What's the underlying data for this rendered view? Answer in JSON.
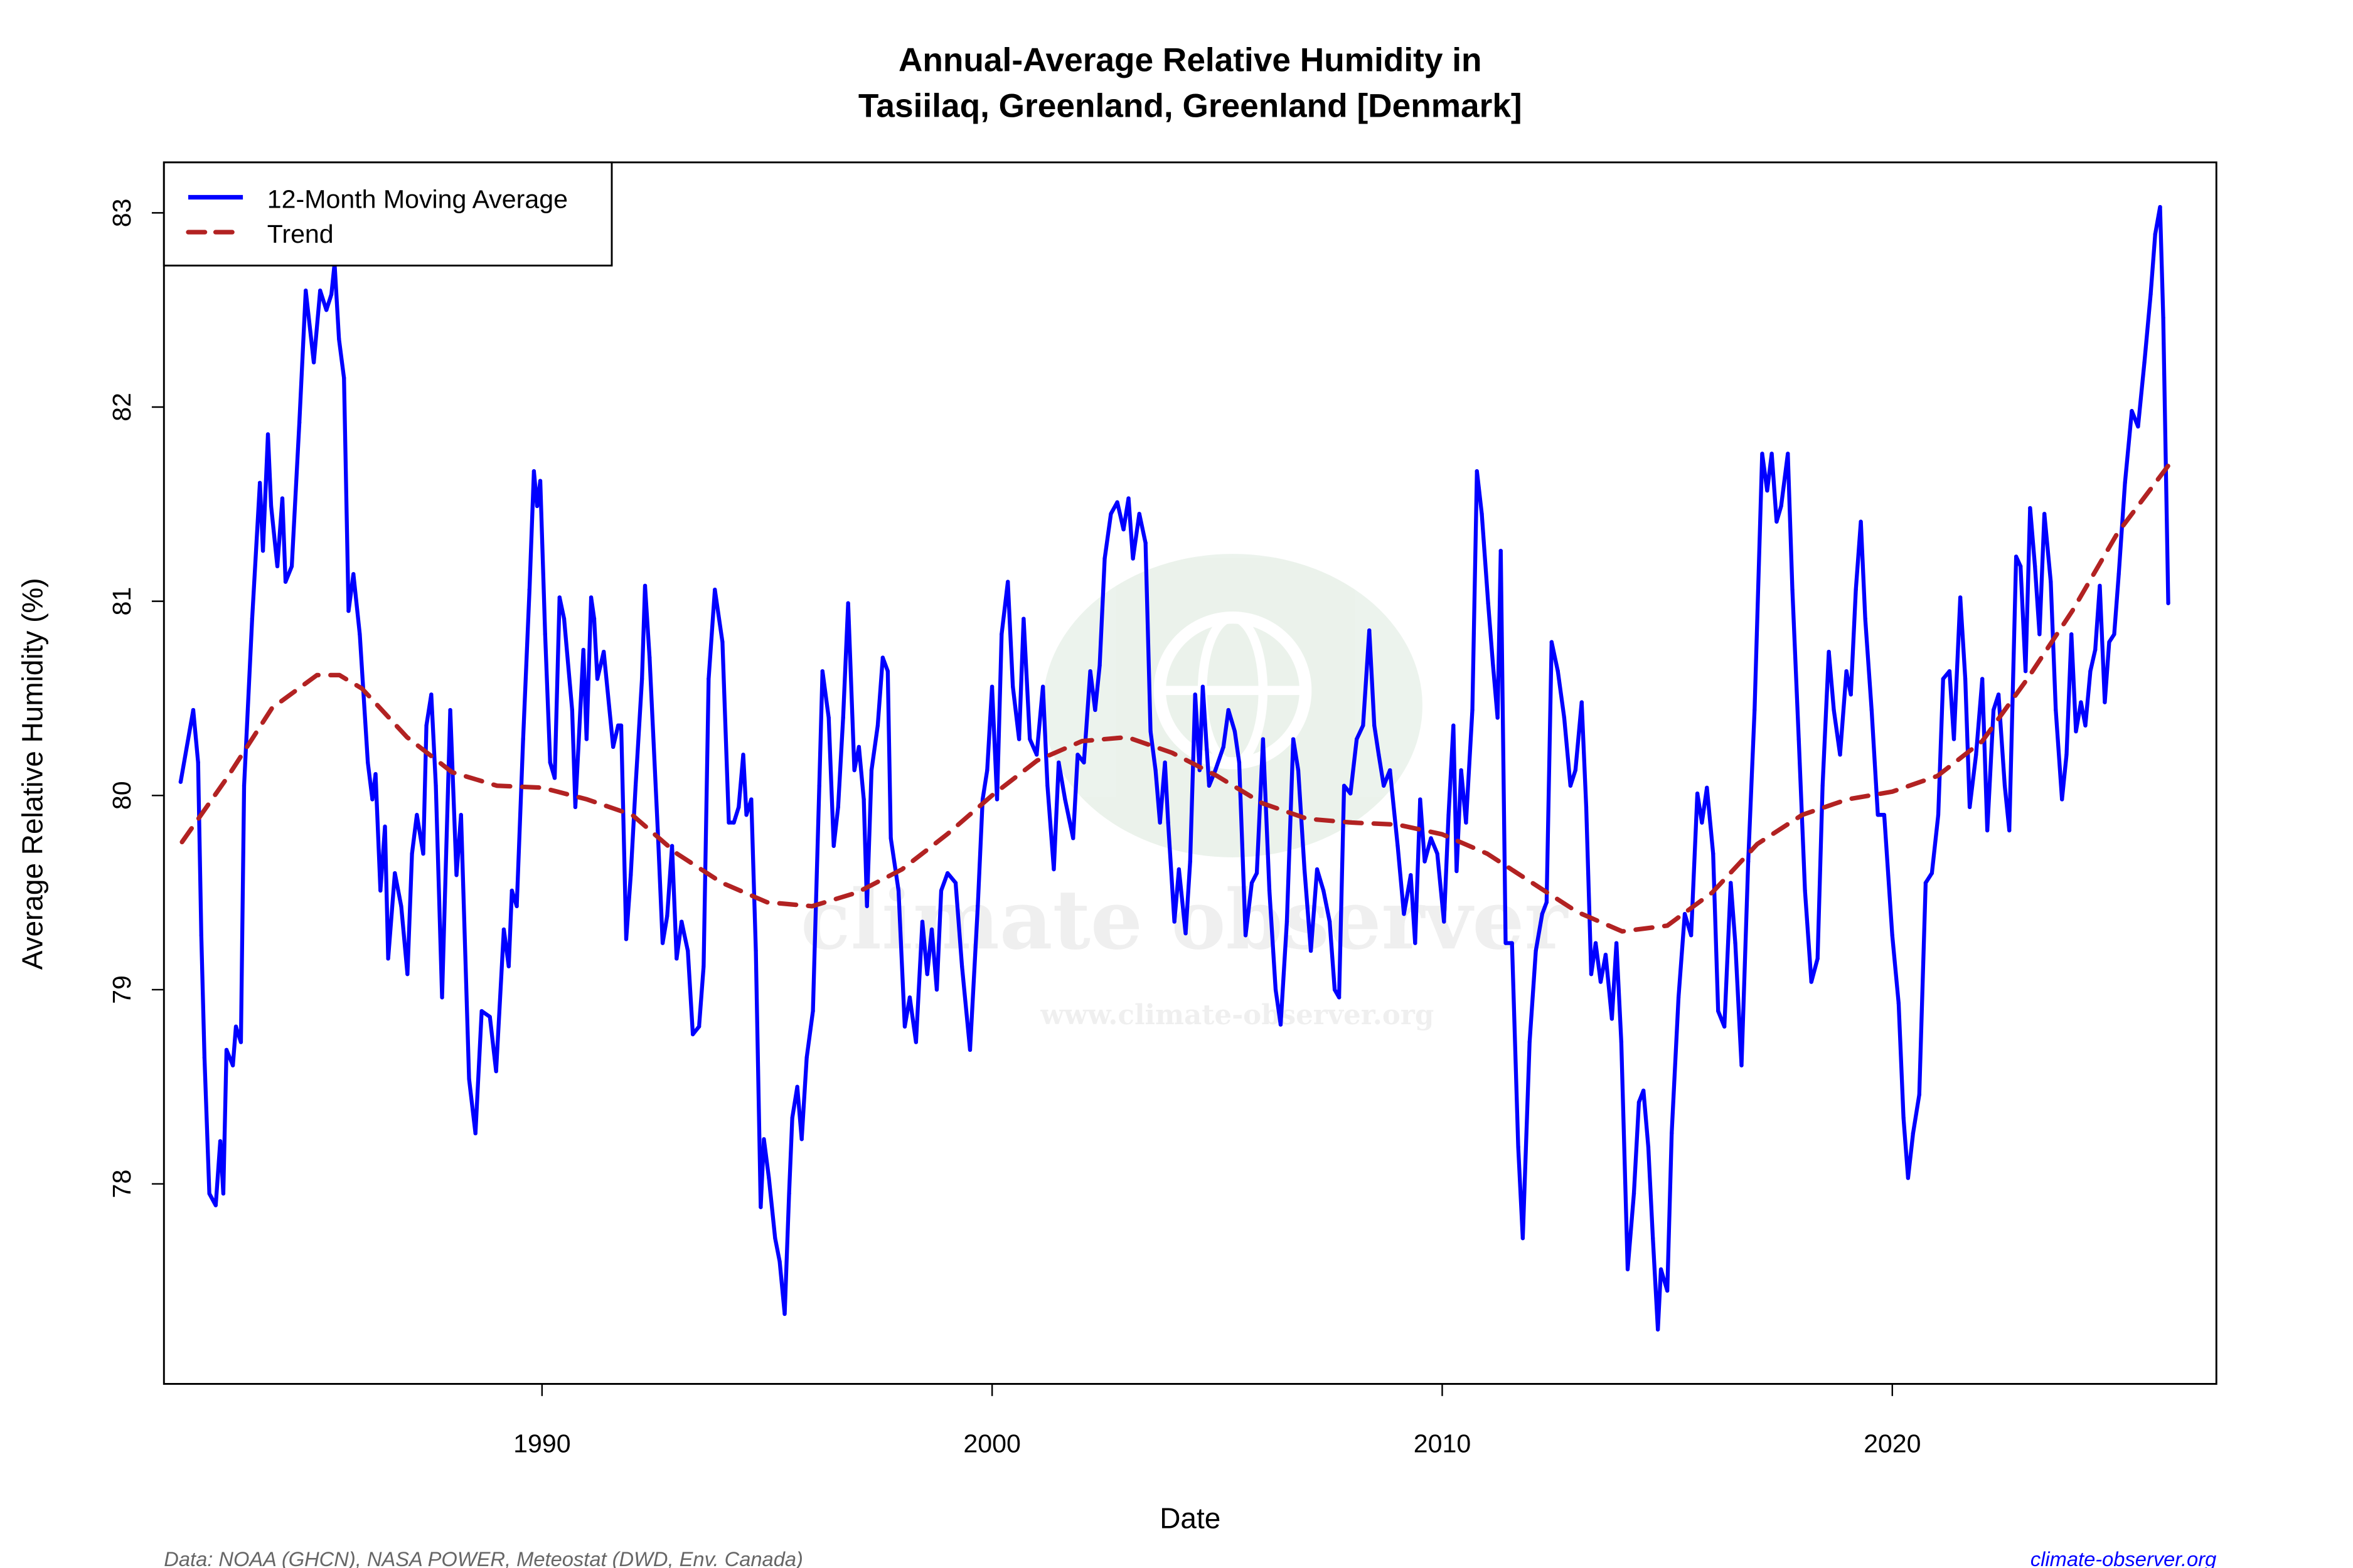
{
  "chart_data": {
    "type": "line",
    "title": "Annual-Average Relative Humidity in",
    "subtitle": "Tasiilaq, Greenland, Greenland [Denmark]",
    "xlabel": "Date",
    "ylabel": "Average Relative Humidity (%)",
    "xlim": [
      1981.6,
      2027.2
    ],
    "ylim": [
      76.97,
      83.26
    ],
    "xticks": [
      1990,
      2000,
      2010,
      2020
    ],
    "yticks": [
      78,
      79,
      80,
      81,
      82,
      83
    ],
    "grid": false,
    "legend": {
      "placement": "top-left",
      "entries": [
        "12-Month Moving Average",
        "Trend"
      ]
    },
    "colors": {
      "moving_average": "#0000ff",
      "trend": "#b22222"
    },
    "series": [
      {
        "name": "12-Month Moving Average",
        "style": "solid",
        "x": [
          1981.97,
          1982.25,
          1982.36,
          1982.43,
          1982.5,
          1982.61,
          1982.75,
          1982.85,
          1982.92,
          1982.99,
          1983.13,
          1983.2,
          1983.31,
          1983.38,
          1983.56,
          1983.73,
          1983.8,
          1983.91,
          1983.98,
          1984.12,
          1984.23,
          1984.3,
          1984.44,
          1984.61,
          1984.75,
          1984.93,
          1985.07,
          1985.21,
          1985.32,
          1985.39,
          1985.49,
          1985.6,
          1985.7,
          1985.81,
          1985.95,
          1986.13,
          1986.23,
          1986.3,
          1986.41,
          1986.51,
          1986.58,
          1986.73,
          1986.87,
          1987.01,
          1987.11,
          1987.22,
          1987.36,
          1987.43,
          1987.54,
          1987.64,
          1987.78,
          1987.96,
          1988.1,
          1988.2,
          1988.38,
          1988.52,
          1988.66,
          1988.84,
          1988.98,
          1989.15,
          1989.26,
          1989.33,
          1989.44,
          1989.58,
          1989.72,
          1989.82,
          1989.89,
          1989.96,
          1990.07,
          1990.18,
          1990.28,
          1990.39,
          1990.49,
          1990.67,
          1990.74,
          1990.92,
          1990.99,
          1991.09,
          1991.16,
          1991.23,
          1991.37,
          1991.58,
          1991.69,
          1991.76,
          1991.87,
          1991.97,
          1992.08,
          1992.22,
          1992.29,
          1992.39,
          1992.57,
          1992.68,
          1992.78,
          1992.89,
          1992.99,
          1993.1,
          1993.24,
          1993.35,
          1993.49,
          1993.59,
          1993.7,
          1993.84,
          1994.01,
          1994.15,
          1994.26,
          1994.37,
          1994.47,
          1994.54,
          1994.65,
          1994.75,
          1994.86,
          1994.93,
          1995.04,
          1995.18,
          1995.28,
          1995.39,
          1995.49,
          1995.56,
          1995.67,
          1995.77,
          1995.88,
          1996.02,
          1996.16,
          1996.23,
          1996.37,
          1996.48,
          1996.58,
          1996.69,
          1996.8,
          1996.94,
          1997.04,
          1997.15,
          1997.22,
          1997.32,
          1997.46,
          1997.57,
          1997.68,
          1997.75,
          1997.92,
          1998.06,
          1998.17,
          1998.31,
          1998.45,
          1998.56,
          1998.66,
          1998.77,
          1998.87,
          1999.01,
          1999.19,
          1999.33,
          1999.51,
          1999.68,
          1999.79,
          1999.89,
          2000.0,
          2000.11,
          2000.21,
          2000.35,
          2000.46,
          2000.6,
          2000.7,
          2000.84,
          2000.99,
          2001.13,
          2001.23,
          2001.37,
          2001.48,
          2001.62,
          2001.8,
          2001.9,
          2002.04,
          2002.18,
          2002.29,
          2002.39,
          2002.5,
          2002.64,
          2002.78,
          2002.92,
          2003.03,
          2003.13,
          2003.27,
          2003.41,
          2003.52,
          2003.63,
          2003.73,
          2003.84,
          2003.91,
          2004.05,
          2004.15,
          2004.3,
          2004.4,
          2004.51,
          2004.61,
          2004.68,
          2004.82,
          2004.96,
          2005.14,
          2005.25,
          2005.39,
          2005.49,
          2005.63,
          2005.77,
          2005.88,
          2006.02,
          2006.16,
          2006.3,
          2006.41,
          2006.55,
          2006.69,
          2006.8,
          2006.94,
          2007.08,
          2007.22,
          2007.36,
          2007.5,
          2007.61,
          2007.71,
          2007.82,
          2007.96,
          2008.1,
          2008.24,
          2008.38,
          2008.49,
          2008.59,
          2008.7,
          2008.84,
          2009.01,
          2009.15,
          2009.3,
          2009.4,
          2009.51,
          2009.61,
          2009.75,
          2009.89,
          2010.04,
          2010.14,
          2010.25,
          2010.32,
          2010.42,
          2010.53,
          2010.67,
          2010.77,
          2010.88,
          2011.02,
          2011.13,
          2011.23,
          2011.3,
          2011.41,
          2011.55,
          2011.69,
          2011.79,
          2011.94,
          2012.08,
          2012.22,
          2012.32,
          2012.43,
          2012.57,
          2012.71,
          2012.85,
          2012.96,
          2013.1,
          2013.2,
          2013.31,
          2013.41,
          2013.52,
          2013.63,
          2013.77,
          2013.87,
          2013.98,
          2014.12,
          2014.26,
          2014.37,
          2014.47,
          2014.58,
          2014.68,
          2014.79,
          2014.86,
          2015.0,
          2015.1,
          2015.25,
          2015.39,
          2015.53,
          2015.67,
          2015.77,
          2015.88,
          2016.02,
          2016.13,
          2016.27,
          2016.41,
          2016.51,
          2016.65,
          2016.8,
          2016.94,
          2017.11,
          2017.22,
          2017.32,
          2017.43,
          2017.53,
          2017.68,
          2017.78,
          2017.92,
          2018.06,
          2018.2,
          2018.34,
          2018.45,
          2018.59,
          2018.7,
          2018.84,
          2018.98,
          2019.08,
          2019.19,
          2019.3,
          2019.4,
          2019.54,
          2019.68,
          2019.82,
          2020.0,
          2020.14,
          2020.25,
          2020.35,
          2020.46,
          2020.6,
          2020.74,
          2020.88,
          2021.02,
          2021.13,
          2021.27,
          2021.37,
          2021.51,
          2021.62,
          2021.72,
          2021.86,
          2022.0,
          2022.11,
          2022.25,
          2022.36,
          2022.5,
          2022.6,
          2022.75,
          2022.85,
          2022.96,
          2023.06,
          2023.17,
          2023.27,
          2023.38,
          2023.52,
          2023.63,
          2023.77,
          2023.87,
          2023.98,
          2024.08,
          2024.19,
          2024.29,
          2024.4,
          2024.51,
          2024.61,
          2024.72,
          2024.82,
          2024.93,
          2025.03,
          2025.17,
          2025.32,
          2025.46,
          2025.6,
          2025.74,
          2025.84,
          2025.95,
          2026.02,
          2026.13
        ],
        "y": [
          80.07,
          80.44,
          80.17,
          79.28,
          78.65,
          77.95,
          77.89,
          78.22,
          77.95,
          78.69,
          78.61,
          78.81,
          78.73,
          80.05,
          80.91,
          81.61,
          81.26,
          81.86,
          81.49,
          81.18,
          81.53,
          81.1,
          81.18,
          81.92,
          82.6,
          82.23,
          82.6,
          82.5,
          82.58,
          82.74,
          82.35,
          82.15,
          80.95,
          81.14,
          80.83,
          80.17,
          79.98,
          80.11,
          79.51,
          79.84,
          79.16,
          79.6,
          79.43,
          79.08,
          79.7,
          79.9,
          79.7,
          80.36,
          80.52,
          80.05,
          78.96,
          80.44,
          79.59,
          79.9,
          78.54,
          78.26,
          78.89,
          78.86,
          78.58,
          79.31,
          79.12,
          79.51,
          79.43,
          80.29,
          81.06,
          81.67,
          81.49,
          81.62,
          80.83,
          80.17,
          80.09,
          81.02,
          80.91,
          80.44,
          79.94,
          80.75,
          80.29,
          81.02,
          80.91,
          80.6,
          80.74,
          80.25,
          80.36,
          80.36,
          79.26,
          79.59,
          80.05,
          80.6,
          81.08,
          80.71,
          79.82,
          79.24,
          79.38,
          79.74,
          79.16,
          79.35,
          79.2,
          78.77,
          78.81,
          79.12,
          80.6,
          81.06,
          80.79,
          79.86,
          79.86,
          79.94,
          80.21,
          79.9,
          79.98,
          79.2,
          77.88,
          78.23,
          78.03,
          77.72,
          77.6,
          77.33,
          77.95,
          78.34,
          78.5,
          78.23,
          78.65,
          78.89,
          80.05,
          80.64,
          80.4,
          79.74,
          79.94,
          80.4,
          80.99,
          80.13,
          80.25,
          79.98,
          79.43,
          80.13,
          80.36,
          80.71,
          80.64,
          79.78,
          79.51,
          78.81,
          78.96,
          78.73,
          79.35,
          79.08,
          79.31,
          79.0,
          79.51,
          79.6,
          79.55,
          79.12,
          78.69,
          79.43,
          79.98,
          80.13,
          80.56,
          79.98,
          80.83,
          81.1,
          80.56,
          80.29,
          80.91,
          80.29,
          80.21,
          80.56,
          80.05,
          79.62,
          80.17,
          79.98,
          79.78,
          80.21,
          80.17,
          80.64,
          80.44,
          80.67,
          81.22,
          81.45,
          81.51,
          81.37,
          81.53,
          81.22,
          81.45,
          81.3,
          80.33,
          80.13,
          79.86,
          80.17,
          79.86,
          79.35,
          79.62,
          79.29,
          79.66,
          80.52,
          80.13,
          80.56,
          80.05,
          80.13,
          80.25,
          80.44,
          80.33,
          80.17,
          79.28,
          79.55,
          79.6,
          80.29,
          79.51,
          79.0,
          78.82,
          79.35,
          80.29,
          80.13,
          79.62,
          79.2,
          79.62,
          79.51,
          79.35,
          79.0,
          78.96,
          80.05,
          80.01,
          80.29,
          80.36,
          80.85,
          80.36,
          80.21,
          80.05,
          80.13,
          79.74,
          79.39,
          79.59,
          79.24,
          79.98,
          79.66,
          79.78,
          79.7,
          79.35,
          79.9,
          80.36,
          79.61,
          80.13,
          79.86,
          80.44,
          81.67,
          81.45,
          80.99,
          80.67,
          80.4,
          81.26,
          79.24,
          79.24,
          78.19,
          77.72,
          78.73,
          79.2,
          79.39,
          79.45,
          80.79,
          80.64,
          80.4,
          80.05,
          80.13,
          80.48,
          79.94,
          79.08,
          79.24,
          79.04,
          79.18,
          78.85,
          79.24,
          78.73,
          77.56,
          77.95,
          78.42,
          78.48,
          78.19,
          77.72,
          77.25,
          77.56,
          77.45,
          78.26,
          78.96,
          79.39,
          79.28,
          80.01,
          79.86,
          80.04,
          79.7,
          78.89,
          78.81,
          79.55,
          79.24,
          78.61,
          79.66,
          80.44,
          81.76,
          81.57,
          81.76,
          81.41,
          81.49,
          81.76,
          81.06,
          80.29,
          79.51,
          79.04,
          79.16,
          80.05,
          80.74,
          80.44,
          80.21,
          80.64,
          80.52,
          81.06,
          81.41,
          80.91,
          80.44,
          79.9,
          79.9,
          79.28,
          78.93,
          78.34,
          78.03,
          78.26,
          78.46,
          79.55,
          79.6,
          79.9,
          80.6,
          80.64,
          80.29,
          81.02,
          80.6,
          79.94,
          80.21,
          80.6,
          79.82,
          80.44,
          80.52,
          80.05,
          79.82,
          81.23,
          81.18,
          80.64,
          81.48,
          81.18,
          80.83,
          81.45,
          81.1,
          80.44,
          79.98,
          80.21,
          80.83,
          80.33,
          80.48,
          80.36,
          80.64,
          80.75,
          81.08,
          80.48,
          80.79,
          80.83,
          81.14,
          81.61,
          81.98,
          81.9,
          82.23,
          82.58,
          82.89,
          83.03,
          82.46,
          80.99
        ]
      },
      {
        "name": "Trend",
        "style": "dashed",
        "x": [
          1982.0,
          1983,
          1984,
          1985,
          1985.5,
          1986,
          1987,
          1988,
          1989,
          1990,
          1991,
          1992,
          1993,
          1994,
          1995,
          1996,
          1997,
          1998,
          1999,
          2000,
          2001,
          2002,
          2003,
          2004,
          2005,
          2006,
          2007,
          2008,
          2009,
          2010,
          2011,
          2012,
          2013,
          2014,
          2015,
          2016,
          2017,
          2018,
          2019,
          2020,
          2021,
          2022,
          2023,
          2024,
          2025,
          2026.2
        ],
        "y": [
          79.76,
          80.09,
          80.45,
          80.62,
          80.62,
          80.55,
          80.3,
          80.12,
          80.05,
          80.04,
          79.98,
          79.9,
          79.7,
          79.55,
          79.45,
          79.43,
          79.5,
          79.62,
          79.8,
          80.0,
          80.18,
          80.28,
          80.3,
          80.22,
          80.1,
          79.96,
          79.88,
          79.86,
          79.85,
          79.8,
          79.7,
          79.55,
          79.4,
          79.3,
          79.33,
          79.5,
          79.75,
          79.9,
          79.98,
          80.02,
          80.1,
          80.28,
          80.6,
          80.95,
          81.35,
          81.72
        ]
      }
    ]
  },
  "footer": {
    "source": "Data: NOAA (GHCN), NASA POWER, Meteostat (DWD, Env. Canada)",
    "site": "climate-observer.org"
  },
  "watermark": {
    "text": "climate observer",
    "url": "www.climate-observer.org"
  }
}
